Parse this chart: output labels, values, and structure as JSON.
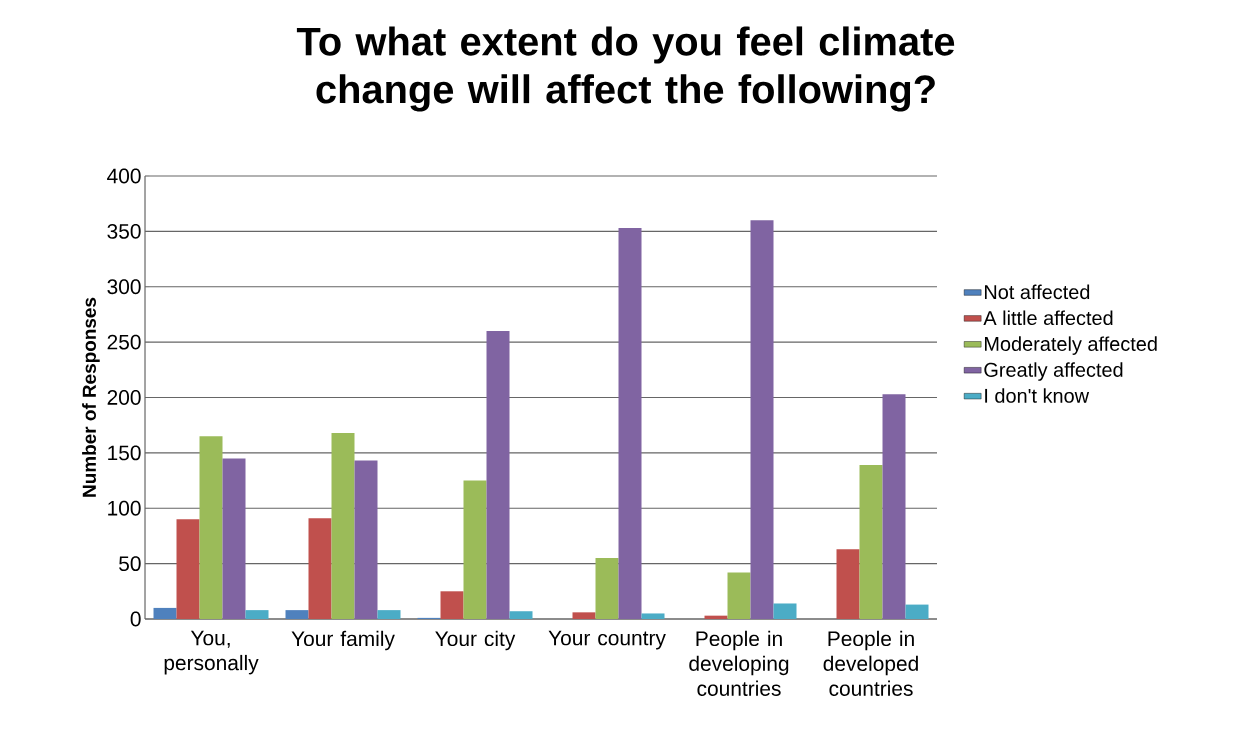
{
  "chart_data": {
    "type": "bar",
    "title": "To what extent do you feel climate change will affect the following?",
    "ylabel": "Number of Responses",
    "categories": [
      "You, personally",
      "Your family",
      "Your city",
      "Your country",
      "People in developing countries",
      "People in developed countries"
    ],
    "series": [
      {
        "name": "Not affected",
        "color": "#4f81bd",
        "values": [
          10,
          8,
          1,
          0,
          0,
          0
        ]
      },
      {
        "name": "A little affected",
        "color": "#c0504d",
        "values": [
          90,
          91,
          25,
          6,
          3,
          63
        ]
      },
      {
        "name": "Moderately affected",
        "color": "#9bbb59",
        "values": [
          165,
          168,
          125,
          55,
          42,
          139
        ]
      },
      {
        "name": "Greatly affected",
        "color": "#8064a2",
        "values": [
          145,
          143,
          260,
          353,
          360,
          203
        ]
      },
      {
        "name": "I don't know",
        "color": "#4bacc6",
        "values": [
          8,
          8,
          7,
          5,
          14,
          13
        ]
      }
    ],
    "ylim": [
      0,
      400
    ],
    "yticks": [
      0,
      50,
      100,
      150,
      200,
      250,
      300,
      350,
      400
    ],
    "grid": "y",
    "legend": "right"
  }
}
